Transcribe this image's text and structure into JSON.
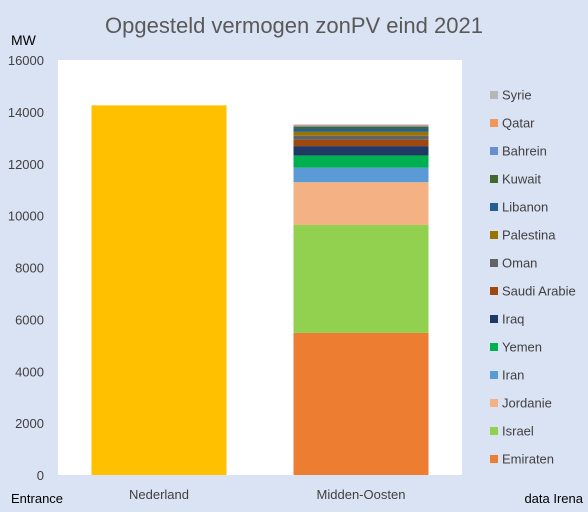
{
  "chart_data": {
    "type": "bar",
    "stacked": true,
    "title": "Opgesteld vermogen zonPV eind 2021",
    "ylabel": "MW",
    "ylim": [
      0,
      16000
    ],
    "yticks": [
      0,
      2000,
      4000,
      6000,
      8000,
      10000,
      12000,
      14000,
      16000
    ],
    "categories": [
      "Nederland",
      "Midden-Oosten"
    ],
    "series": [
      {
        "name": "",
        "color": "#ffc000",
        "values": [
          14250,
          0
        ]
      },
      {
        "name": "Emiraten",
        "color": "#ed7d31",
        "values": [
          0,
          5480
        ]
      },
      {
        "name": "Israel",
        "color": "#92d050",
        "values": [
          0,
          4160
        ]
      },
      {
        "name": "Jordanie",
        "color": "#f4b183",
        "values": [
          0,
          1650
        ]
      },
      {
        "name": "Iran",
        "color": "#5b9bd5",
        "values": [
          0,
          560
        ]
      },
      {
        "name": "Yemen",
        "color": "#00b050",
        "values": [
          0,
          470
        ]
      },
      {
        "name": "Iraq",
        "color": "#203864",
        "values": [
          0,
          360
        ]
      },
      {
        "name": "Saudi Arabie",
        "color": "#9e480e",
        "values": [
          0,
          240
        ]
      },
      {
        "name": "Oman",
        "color": "#636363",
        "values": [
          0,
          160
        ]
      },
      {
        "name": "Palestina",
        "color": "#997300",
        "values": [
          0,
          150
        ]
      },
      {
        "name": "Libanon",
        "color": "#255e91",
        "values": [
          0,
          110
        ]
      },
      {
        "name": "Kuwait",
        "color": "#43682b",
        "values": [
          0,
          90
        ]
      },
      {
        "name": "Bahrein",
        "color": "#698ed0",
        "values": [
          0,
          40
        ]
      },
      {
        "name": "Qatar",
        "color": "#f1975a",
        "values": [
          0,
          30
        ]
      },
      {
        "name": "Syrie",
        "color": "#b7b7b7",
        "values": [
          0,
          20
        ]
      }
    ],
    "legend_position": "right",
    "grid": false
  },
  "footer": {
    "left_text": "Entrance",
    "right_text": "data Irena"
  }
}
